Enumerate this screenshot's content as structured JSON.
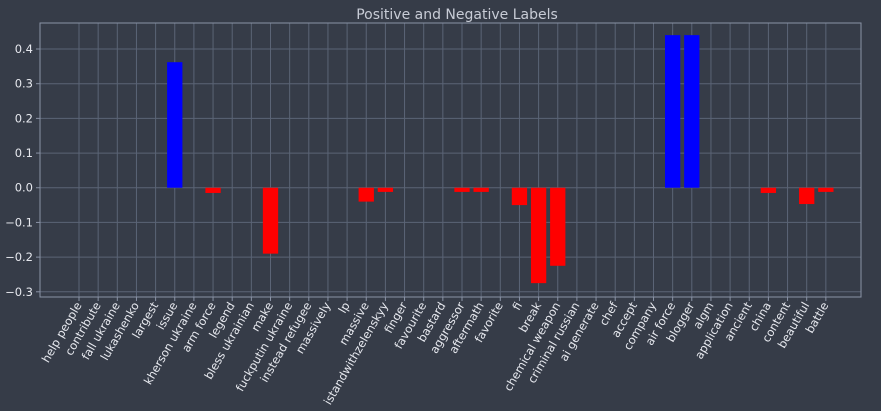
{
  "chart_data": {
    "type": "bar",
    "title": "Positive and Negative Labels",
    "xlabel": "",
    "ylabel": "",
    "ylim": [
      -0.315,
      0.475
    ],
    "yticks": [
      0.4,
      0.3,
      0.2,
      0.1,
      0.0,
      -0.1,
      -0.2,
      -0.3
    ],
    "ytick_labels": [
      "0.4",
      "0.3",
      "0.2",
      "0.1",
      "0.0",
      "−0.1",
      "−0.2",
      "−0.3"
    ],
    "grid": true,
    "colors": {
      "background": "#363c48",
      "positive": "#0000ff",
      "negative": "#ff0000",
      "grid": "#5b6476",
      "axes": "#8a93a6",
      "text": "#e6e8ee",
      "title": "#c8ccd6"
    },
    "categories": [
      "help people",
      "contribute",
      "fall ukraine",
      "lukashenko",
      "largest",
      "issue",
      "kherson ukraine",
      "arm force",
      "legend",
      "bless ukrainian",
      "make",
      "fuckputin ukraine",
      "instead refugee",
      "massively",
      "lp",
      "massive",
      "istandwithzelenskyy",
      "finger",
      "favourite",
      "bastard",
      "aggressor",
      "aftermath",
      "favorite",
      "fi",
      "break",
      "chemical weapon",
      "criminal russian",
      "ai generate",
      "chef",
      "accept",
      "company",
      "air force",
      "blogger",
      "algm",
      "application",
      "ancient",
      "china",
      "content",
      "beautiful",
      "battle"
    ],
    "values": [
      0,
      0,
      0,
      0,
      0,
      0.362,
      0,
      -0.015,
      0,
      0,
      -0.19,
      0,
      0,
      0,
      0,
      -0.04,
      -0.012,
      0,
      0,
      0,
      -0.012,
      -0.012,
      0,
      -0.05,
      -0.275,
      -0.225,
      0,
      0,
      0,
      0,
      0,
      0.44,
      0.44,
      0,
      0,
      0,
      -0.015,
      0,
      -0.047,
      -0.012
    ]
  }
}
